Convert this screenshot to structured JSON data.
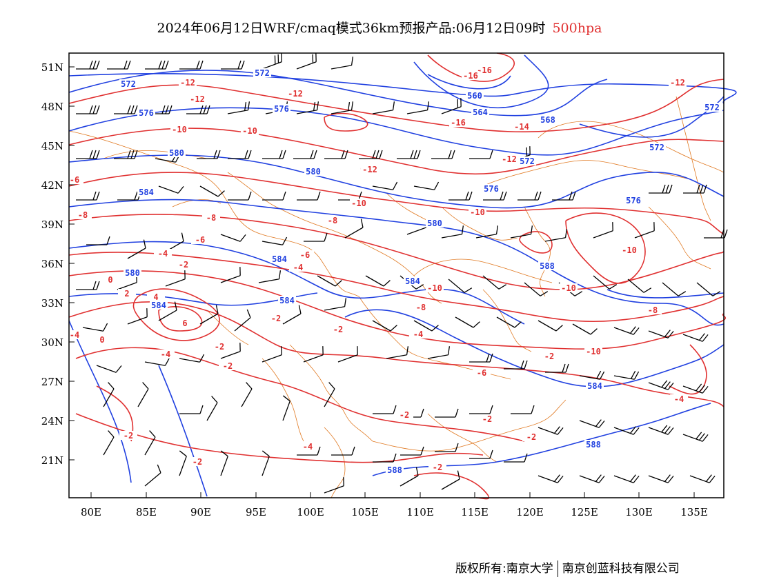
{
  "header": {
    "title": "2024年06月12日WRF/cmaq模式36km预报产品:06月12日09时",
    "level": "500hpa"
  },
  "colors": {
    "height_contour": "#2040e0",
    "temperature_contour": "#e03030",
    "border": "#e07820",
    "wind_barb": "#000000"
  },
  "axes": {
    "lat_labels": [
      "51N",
      "48N",
      "45N",
      "42N",
      "39N",
      "36N",
      "33N",
      "30N",
      "27N",
      "24N",
      "21N"
    ],
    "lon_labels": [
      "80E",
      "85E",
      "90E",
      "95E",
      "100E",
      "105E",
      "110E",
      "115E",
      "120E",
      "125E",
      "130E",
      "135E"
    ]
  },
  "chart_data": {
    "type": "map",
    "height_contour_labels": [
      "572",
      "572",
      "576",
      "576",
      "580",
      "580",
      "584",
      "588",
      "560",
      "564",
      "568",
      "572",
      "576",
      "580",
      "584",
      "584",
      "584",
      "584",
      "588",
      "588",
      "568",
      "572",
      "576",
      "572",
      "580",
      "584"
    ],
    "temperature_contour_labels": [
      "-12",
      "-12",
      "-12",
      "-16",
      "-16",
      "-16",
      "-14",
      "-12",
      "-12",
      "-10",
      "-10",
      "-12",
      "-10",
      "-10",
      "-10",
      "-8",
      "-8",
      "-8",
      "-6",
      "-6",
      "-4",
      "-4",
      "-2",
      "0",
      "2",
      "4",
      "6",
      "-4",
      "-2",
      "0",
      "-2",
      "-8",
      "-10",
      "-10",
      "-8",
      "-4",
      "-6",
      "-4",
      "-2",
      "-2",
      "-2",
      "-2",
      "-2",
      "-2",
      "-2",
      "-2",
      "-2",
      "-4",
      "-4",
      "-6",
      "-8",
      "-10",
      "-12"
    ]
  },
  "footer": {
    "copyright_left": "版权所有:南京大学",
    "copyright_right": "南京创蓝科技有限公司"
  }
}
